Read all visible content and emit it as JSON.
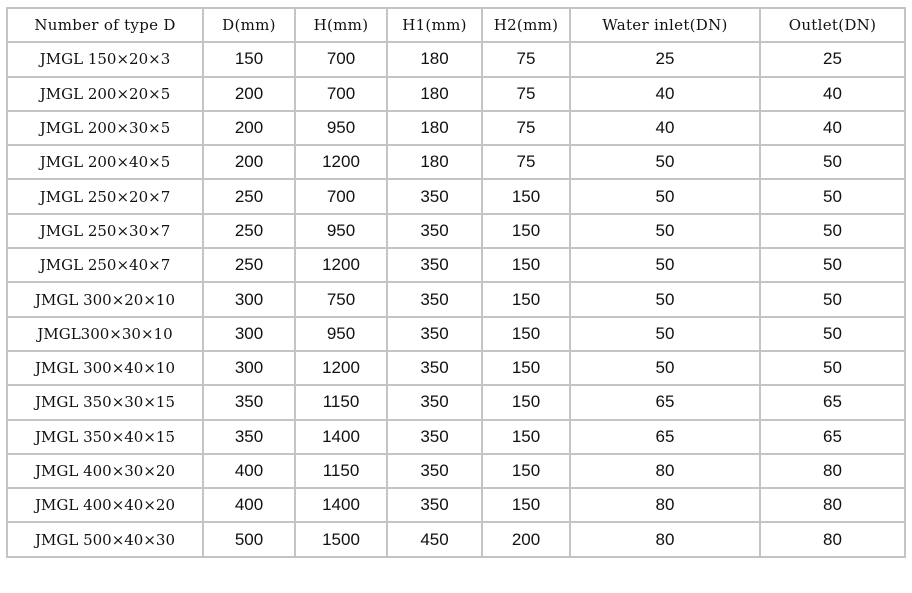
{
  "headers": [
    "Number of type D",
    "D(mm)",
    "H(mm)",
    "H1(mm)",
    "H2(mm)",
    "Water inlet(DN)",
    "Outlet(DN)"
  ],
  "rows": [
    [
      "JMGL 150×20×3",
      "150",
      "700",
      "180",
      "75",
      "25",
      "25"
    ],
    [
      "JMGL 200×20×5",
      "200",
      "700",
      "180",
      "75",
      "40",
      "40"
    ],
    [
      "JMGL 200×30×5",
      "200",
      "950",
      "180",
      "75",
      "40",
      "40"
    ],
    [
      "JMGL 200×40×5",
      "200",
      "1200",
      "180",
      "75",
      "50",
      "50"
    ],
    [
      "JMGL 250×20×7",
      "250",
      "700",
      "350",
      "150",
      "50",
      "50"
    ],
    [
      "JMGL 250×30×7",
      "250",
      "950",
      "350",
      "150",
      "50",
      "50"
    ],
    [
      "JMGL 250×40×7",
      "250",
      "1200",
      "350",
      "150",
      "50",
      "50"
    ],
    [
      "JMGL 300×20×10",
      "300",
      "750",
      "350",
      "150",
      "50",
      "50"
    ],
    [
      "JMGL300×30×10",
      "300",
      "950",
      "350",
      "150",
      "50",
      "50"
    ],
    [
      "JMGL 300×40×10",
      "300",
      "1200",
      "350",
      "150",
      "50",
      "50"
    ],
    [
      "JMGL 350×30×15",
      "350",
      "1150",
      "350",
      "150",
      "65",
      "65"
    ],
    [
      "JMGL 350×40×15",
      "350",
      "1400",
      "350",
      "150",
      "65",
      "65"
    ],
    [
      "JMGL 400×30×20",
      "400",
      "1150",
      "350",
      "150",
      "80",
      "80"
    ],
    [
      "JMGL 400×40×20",
      "400",
      "1400",
      "350",
      "150",
      "80",
      "80"
    ],
    [
      "JMGL 500×40×30",
      "500",
      "1500",
      "450",
      "200",
      "80",
      "80"
    ]
  ]
}
